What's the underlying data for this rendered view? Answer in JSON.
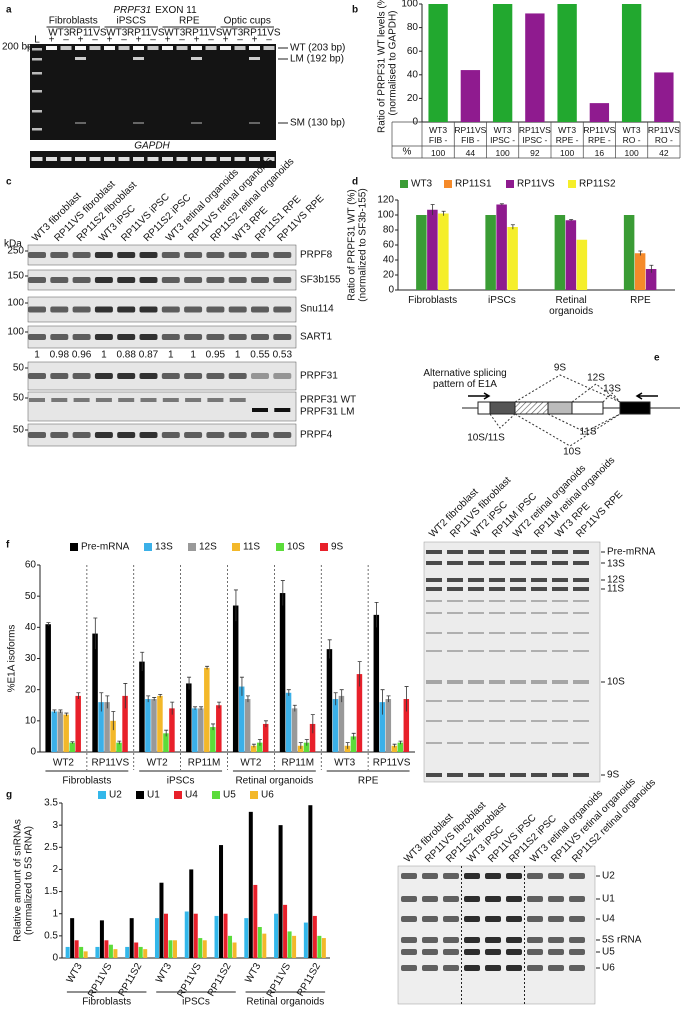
{
  "panel_labels": [
    "a",
    "b",
    "c",
    "d",
    "e",
    "f",
    "g"
  ],
  "gel_a": {
    "gene": "PRPF31",
    "title": "EXON 11",
    "groups": [
      "Fibroblasts",
      "iPSCS",
      "RPE",
      "Optic cups"
    ],
    "lane_labels": [
      "L",
      "WT3",
      "RP11VS",
      "WT3",
      "RP11VS",
      "WT3",
      "RP11VS",
      "WT3",
      "RP11VS"
    ],
    "rt_labels": [
      "+",
      "–",
      "+",
      "–",
      "+",
      "–",
      "+",
      "–",
      "+",
      "–",
      "+",
      "–",
      "+",
      "–",
      "+",
      "–"
    ],
    "marker": "200 bp",
    "bands": [
      "WT (203 bp)",
      "LM (192 bp)",
      "SM (130 bp)"
    ],
    "loading_control": "GAPDH"
  },
  "blot_c": {
    "lanes": [
      "WT3 fibroblast",
      "RP11VS fibroblast",
      "RP11S2 fibroblast",
      "WT3 iPSC",
      "RP11VS iPSC",
      "RP11S2 iPSC",
      "WT3 retinal organoids",
      "RP11VS retinal organoids",
      "RP11S2 retinal organoids",
      "WT3 RPE",
      "RP11S1 RPE",
      "RP11VS RPE"
    ],
    "kda_label": "kDa",
    "markers": [
      250,
      150,
      100,
      100,
      50,
      50,
      50
    ],
    "proteins": [
      "PRPF8",
      "SF3b155",
      "Snu114",
      "SART1",
      "PRPF31",
      "PRPF31 WT",
      "PRPF31 LM",
      "PRPF4"
    ],
    "sart1_quantification": [
      1,
      0.98,
      0.96,
      1,
      0.88,
      0.87,
      1,
      1,
      0.95,
      1,
      0.55,
      0.53
    ]
  },
  "diagram_e": {
    "title": "Alternative splicing pattern of E1A",
    "isoforms": [
      "9S",
      "12S",
      "13S",
      "10S/11S",
      "11S",
      "10S"
    ]
  },
  "gel_f": {
    "lanes": [
      "WT2 fibroblast",
      "RP11VS fibroblast",
      "WT2 iPSC",
      "RP11M iPSC",
      "WT2 retinal organoids",
      "RP11M retinal organoids",
      "WT3 RPE",
      "RP11VS RPE"
    ],
    "bands": [
      "Pre-mRNA",
      "13S",
      "12S",
      "11S",
      "10S",
      "9S"
    ]
  },
  "gel_g": {
    "lanes": [
      "WT3 fibroblast",
      "RP11VS fibroblast",
      "RP11S2 fibroblast",
      "WT3 iPSC",
      "RP11VS iPSC",
      "RP11S2 iPSC",
      "WT3 retinal organoids",
      "RP11VS retinal organoids",
      "RP11S2 retinal organoids"
    ],
    "bands": [
      "U2",
      "U1",
      "U4",
      "5S rRNA",
      "U5",
      "U6"
    ]
  },
  "chart_data": [
    {
      "type": "bar",
      "ylabel": [
        "Ratio of PRPF31 WT levels (%)",
        "(normalised to GAPDH)"
      ],
      "categories": [
        "WT3 FIB -",
        "RP11VS FIB -",
        "WT3 IPSC -",
        "RP11VS IPSC -",
        "WT3 RPE -",
        "RP11VS RPE -",
        "WT3 RO -",
        "RP11VS RO -"
      ],
      "values": [
        100,
        44,
        100,
        92,
        100,
        16,
        100,
        42
      ],
      "colors": [
        "#22a82f",
        "#8f1b8f",
        "#22a82f",
        "#8f1b8f",
        "#22a82f",
        "#8f1b8f",
        "#22a82f",
        "#8f1b8f"
      ],
      "table_label": "%",
      "ylim": [
        0,
        100
      ],
      "yticks": [
        0,
        20,
        40,
        60,
        80,
        100
      ]
    },
    {
      "type": "grouped_bar",
      "ylabel": [
        "Ratio of PRPF31 WT (%)",
        "(normalized to SF3b-155)"
      ],
      "categories": [
        "Fibroblasts",
        "iPSCs",
        "Retinal organoids",
        "RPE"
      ],
      "series": [
        {
          "name": "WT3",
          "color": "#3a9c35",
          "values": [
            100,
            100,
            100,
            100
          ]
        },
        {
          "name": "RP11S1",
          "color": "#f58a2a",
          "values": [
            null,
            null,
            null,
            49
          ],
          "errors": [
            null,
            null,
            null,
            3
          ]
        },
        {
          "name": "RP11VS",
          "color": "#8e1a8e",
          "values": [
            107,
            114,
            93,
            28
          ],
          "errors": [
            7,
            1,
            1,
            5
          ]
        },
        {
          "name": "RP11S2",
          "color": "#f5ee2a",
          "values": [
            102,
            84,
            67,
            null
          ],
          "errors": [
            3,
            3,
            null,
            null
          ]
        }
      ],
      "ylim": [
        0,
        120
      ],
      "yticks": [
        0,
        20,
        40,
        60,
        80,
        100,
        120
      ],
      "legend": "top"
    },
    {
      "type": "grouped_bar",
      "ylabel": [
        "%E1A isoforms"
      ],
      "categories": [
        "WT2",
        "RP11VS",
        "WT2",
        "RP11M",
        "WT2",
        "RP11M",
        "WT3",
        "RP11VS"
      ],
      "groups": [
        "Fibroblasts",
        "iPSCs",
        "Retinal organoids",
        "RPE"
      ],
      "series": [
        {
          "name": "Pre-mRNA",
          "color": "#000000",
          "values": [
            41,
            38,
            29,
            22,
            47,
            51,
            33,
            44
          ],
          "errors": [
            0.5,
            5,
            3,
            2,
            5,
            4,
            3,
            4
          ]
        },
        {
          "name": "13S",
          "color": "#3bb0e8",
          "values": [
            13,
            16,
            17,
            14,
            21,
            19,
            17,
            16
          ],
          "errors": [
            0.5,
            3,
            1,
            0.5,
            3,
            1,
            2,
            4
          ]
        },
        {
          "name": "12S",
          "color": "#999999",
          "values": [
            13,
            16,
            17,
            14,
            17,
            14,
            18,
            17
          ],
          "errors": [
            0.5,
            2,
            0.5,
            0.5,
            1,
            1,
            2,
            1
          ]
        },
        {
          "name": "11S",
          "color": "#f3b82a",
          "values": [
            12,
            10,
            18,
            27,
            2,
            2,
            2,
            2
          ],
          "errors": [
            0.5,
            3,
            0.5,
            0.5,
            0.5,
            1,
            1,
            0.5
          ]
        },
        {
          "name": "10S",
          "color": "#5bdc3a",
          "values": [
            3,
            3,
            6,
            8,
            3,
            3,
            5,
            3
          ],
          "errors": [
            0.3,
            0.5,
            1,
            1,
            1,
            1,
            1,
            0.5
          ]
        },
        {
          "name": "9S",
          "color": "#e8202a",
          "values": [
            18,
            18,
            14,
            15,
            9,
            9,
            25,
            17
          ],
          "errors": [
            1,
            4,
            2,
            1,
            1,
            3,
            4,
            4
          ]
        }
      ],
      "ylim": [
        0,
        60
      ],
      "yticks": [
        0,
        10,
        20,
        30,
        40,
        50,
        60
      ],
      "legend": "top",
      "separators": true
    },
    {
      "type": "grouped_bar",
      "ylabel": [
        "Relative amount of snRNAs",
        "(normalized to 5S rRNA)"
      ],
      "categories": [
        "WT3",
        "RP11VS",
        "RP11S2",
        "WT3",
        "RP11VS",
        "RP11S2",
        "WT3",
        "RP11VS",
        "RP11S2"
      ],
      "groups": [
        "Fibroblasts",
        "iPSCs",
        "Retinal organoids"
      ],
      "series": [
        {
          "name": "U2",
          "color": "#33b7ea",
          "values": [
            0.25,
            0.25,
            0.25,
            0.9,
            1.05,
            0.95,
            0.9,
            1.0,
            0.8
          ]
        },
        {
          "name": "U1",
          "color": "#000000",
          "values": [
            0.9,
            0.85,
            0.9,
            1.7,
            2.0,
            2.55,
            3.3,
            3.0,
            3.45
          ]
        },
        {
          "name": "U4",
          "color": "#e8202a",
          "values": [
            0.4,
            0.4,
            0.35,
            1.0,
            1.0,
            1.0,
            1.65,
            1.2,
            0.95
          ]
        },
        {
          "name": "U5",
          "color": "#5bdc3a",
          "values": [
            0.25,
            0.3,
            0.25,
            0.4,
            0.45,
            0.5,
            0.7,
            0.6,
            0.5
          ]
        },
        {
          "name": "U6",
          "color": "#f3b82a",
          "values": [
            0.15,
            0.2,
            0.2,
            0.4,
            0.4,
            0.35,
            0.55,
            0.5,
            0.45
          ]
        }
      ],
      "ylim": [
        0,
        3.5
      ],
      "yticks": [
        0,
        0.5,
        1,
        1.5,
        2,
        2.5,
        3,
        3.5
      ],
      "legend": "top"
    }
  ]
}
